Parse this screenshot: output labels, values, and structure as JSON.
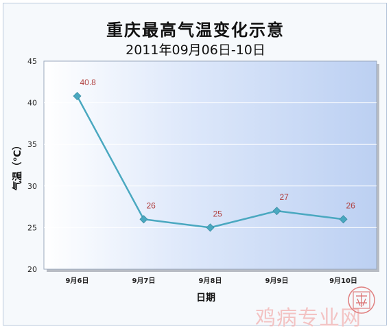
{
  "title": "重庆最高气温变化示意",
  "subtitle": "2011年09月06日-10日",
  "chart_data": {
    "type": "line",
    "title": "重庆最高气温变化示意",
    "subtitle": "2011年09月06日-10日",
    "xlabel": "日期",
    "ylabel": "气温（℃）",
    "categories": [
      "9月6日",
      "9月7日",
      "9月8日",
      "9月9日",
      "9月10日"
    ],
    "values": [
      40.8,
      26,
      25,
      27,
      26
    ],
    "data_labels": [
      "40.8",
      "26",
      "25",
      "27",
      "26"
    ],
    "ylim": [
      20,
      45
    ],
    "yticks": [
      20,
      25,
      30,
      35,
      40,
      45
    ],
    "grid": true,
    "legend": "none",
    "series_color": "#4aa8c0",
    "label_color": "#b04040"
  },
  "watermark": "鸡病专业网"
}
